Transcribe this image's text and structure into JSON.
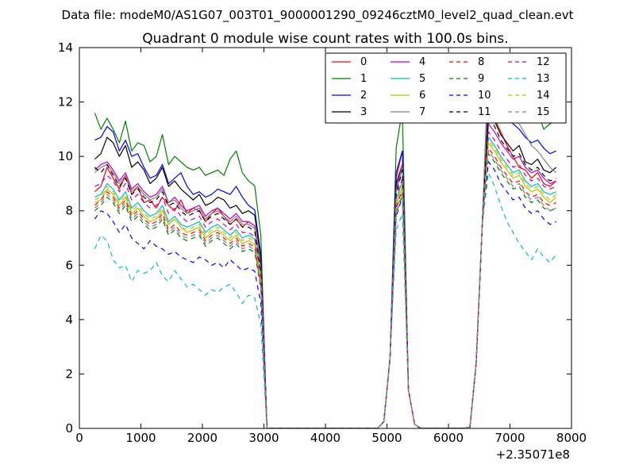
{
  "chart_data": {
    "type": "line",
    "suptitle": "Data file: modeM0/AS1G07_003T01_9000001290_09246cztM0_level2_quad_clean.evt",
    "title": "Quadrant 0 module wise count rates with 100.0s bins.",
    "xlabel": "",
    "ylabel": "",
    "x_offset_label": "+2.35071e8",
    "xlim": [
      0,
      8000
    ],
    "ylim": [
      0,
      14
    ],
    "xticks": [
      0,
      1000,
      2000,
      3000,
      4000,
      5000,
      6000,
      7000,
      8000
    ],
    "xtick_labels": [
      "0",
      "1000",
      "2000",
      "3000",
      "4000",
      "5000",
      "6000",
      "7000",
      "8000"
    ],
    "yticks": [
      0,
      2,
      4,
      6,
      8,
      10,
      12,
      14
    ],
    "ytick_labels": [
      "0",
      "2",
      "4",
      "6",
      "8",
      "10",
      "12",
      "14"
    ],
    "legend_position": "top-right",
    "legend_columns": 4,
    "x_segments": [
      [
        250,
        350,
        450,
        550,
        650,
        750,
        850,
        950,
        1050,
        1150,
        1250,
        1350,
        1450,
        1550,
        1650,
        1750,
        1850,
        1950,
        2050,
        2150,
        2250,
        2350,
        2450,
        2550,
        2650,
        2750,
        2850,
        2950,
        3050,
        3150,
        3250,
        3350,
        3450,
        3550,
        3650,
        3750,
        3850,
        3950,
        4050,
        4150,
        4250,
        4350,
        4450,
        4550,
        4650,
        4750,
        4850,
        4950,
        5050,
        5150,
        5250,
        5350,
        5450,
        5550,
        5650,
        5750,
        5850,
        5950,
        6050,
        6150,
        6250,
        6350,
        6450,
        6550,
        6650,
        6750,
        6850,
        6950,
        7050,
        7150,
        7250,
        7350,
        7450,
        7550,
        7650,
        7750
      ]
    ],
    "series": [
      {
        "name": "0",
        "color": "#ff0000",
        "dash": "solid",
        "profile": [
          8.7,
          8.9,
          9.6,
          9.2,
          8.8,
          9.3,
          8.6,
          8.9,
          8.3,
          8.4,
          8.1,
          8.5,
          8.2,
          8.0,
          8.4,
          7.9,
          8.1,
          8.0,
          7.6,
          7.9,
          8.1,
          7.8,
          7.5,
          7.7,
          7.4,
          7.6
        ],
        "peak1": [
          9.2,
          10.2
        ],
        "peak2": [
          11.7,
          11.4,
          10.9,
          10.4,
          10.0,
          9.6,
          9.5,
          9.2,
          9.4,
          9.0,
          8.9,
          9.1,
          8.8,
          8.9,
          8.7,
          8.6
        ]
      },
      {
        "name": "1",
        "color": "#008000",
        "dash": "solid",
        "profile": [
          11.6,
          11.0,
          11.4,
          11.0,
          10.5,
          11.3,
          10.2,
          10.5,
          10.4,
          9.8,
          10.0,
          10.8,
          9.7,
          10.0,
          9.8,
          9.6,
          9.5,
          9.6,
          9.3,
          9.4,
          9.5,
          9.3,
          9.9,
          10.2,
          9.4,
          9.1
        ],
        "peak1": [
          10.3,
          11.7
        ],
        "peak2": [
          13.4,
          12.9,
          12.3,
          12.1,
          11.7,
          11.8,
          11.5,
          11.3,
          11.6,
          11.0,
          11.2,
          11.3,
          11.0,
          11.1,
          10.6,
          9.2
        ]
      },
      {
        "name": "2",
        "color": "#0000ff",
        "dash": "solid",
        "profile": [
          10.6,
          10.7,
          11.1,
          10.9,
          10.2,
          10.6,
          10.0,
          10.1,
          9.6,
          9.2,
          9.3,
          9.7,
          9.0,
          9.2,
          9.4,
          8.9,
          8.6,
          8.7,
          8.5,
          8.6,
          8.8,
          8.7,
          8.6,
          8.9,
          8.5,
          8.2
        ],
        "peak1": [
          9.4,
          10.2
        ],
        "peak2": [
          12.5,
          12.2,
          11.8,
          11.5,
          11.2,
          11.0,
          10.7,
          10.5,
          10.6,
          10.3,
          10.1,
          10.2,
          9.8,
          9.9,
          9.5,
          8.0
        ]
      },
      {
        "name": "3",
        "color": "#000000",
        "dash": "solid",
        "profile": [
          9.9,
          10.1,
          10.7,
          10.5,
          10.0,
          10.4,
          9.6,
          9.8,
          9.5,
          9.0,
          9.2,
          9.6,
          8.9,
          9.1,
          8.8,
          8.6,
          8.4,
          8.6,
          8.2,
          8.3,
          8.5,
          8.4,
          8.1,
          8.2,
          7.9,
          8.0
        ],
        "peak1": [
          9.0,
          9.7
        ],
        "peak2": [
          11.9,
          11.3,
          10.8,
          10.5,
          10.2,
          10.4,
          9.8,
          9.7,
          9.9,
          9.5,
          9.4,
          9.6,
          9.3,
          9.0,
          9.2,
          8.6
        ]
      },
      {
        "name": "4",
        "color": "#bf00bf",
        "dash": "solid",
        "profile": [
          9.5,
          9.7,
          9.8,
          9.5,
          9.1,
          9.4,
          8.8,
          9.0,
          8.7,
          8.5,
          8.6,
          8.9,
          8.3,
          8.5,
          8.2,
          8.0,
          8.1,
          8.2,
          7.8,
          8.0,
          8.1,
          7.9,
          7.7,
          7.9,
          7.6,
          7.6
        ],
        "peak1": [
          8.8,
          9.7
        ],
        "peak2": [
          11.2,
          10.9,
          10.5,
          10.2,
          9.9,
          10.0,
          9.6,
          9.4,
          9.5,
          9.2,
          9.0,
          9.1,
          8.9,
          9.0,
          8.7,
          8.3
        ]
      },
      {
        "name": "5",
        "color": "#00bfbf",
        "dash": "solid",
        "profile": [
          8.5,
          8.6,
          9.0,
          8.8,
          8.4,
          8.7,
          8.1,
          8.3,
          8.0,
          7.8,
          7.9,
          8.2,
          7.6,
          7.8,
          7.5,
          7.4,
          7.5,
          7.6,
          7.2,
          7.4,
          7.5,
          7.3,
          7.1,
          7.3,
          7.0,
          7.1
        ],
        "peak1": [
          8.4,
          9.1
        ],
        "peak2": [
          10.7,
          10.4,
          10.0,
          9.7,
          9.4,
          9.5,
          9.1,
          8.9,
          9.0,
          8.7,
          8.6,
          8.7,
          8.4,
          8.5,
          8.2,
          7.8
        ]
      },
      {
        "name": "6",
        "color": "#bfbf00",
        "dash": "solid",
        "profile": [
          8.3,
          8.4,
          8.8,
          8.6,
          8.2,
          8.5,
          7.9,
          8.1,
          7.8,
          7.6,
          7.7,
          8.0,
          7.5,
          7.7,
          7.4,
          7.2,
          7.3,
          7.4,
          7.0,
          7.2,
          7.3,
          7.1,
          6.9,
          7.1,
          6.8,
          6.9
        ],
        "peak1": [
          8.2,
          8.9
        ],
        "peak2": [
          10.5,
          10.2,
          9.8,
          9.5,
          9.2,
          9.3,
          8.9,
          8.7,
          8.8,
          8.5,
          8.3,
          8.5,
          8.2,
          8.3,
          8.0,
          7.6
        ]
      },
      {
        "name": "7",
        "color": "#808080",
        "dash": "solid",
        "profile": [
          9.4,
          9.6,
          9.7,
          9.4,
          9.0,
          9.3,
          8.7,
          8.9,
          8.6,
          8.4,
          8.5,
          8.8,
          8.3,
          8.4,
          8.1,
          7.9,
          8.0,
          8.1,
          7.7,
          7.9,
          8.0,
          7.8,
          7.6,
          7.8,
          7.5,
          7.5
        ],
        "peak1": [
          8.7,
          9.6
        ],
        "peak2": [
          12.9,
          12.3,
          11.7,
          11.6,
          11.8,
          11.2,
          10.8,
          10.4,
          10.2,
          9.9,
          9.6,
          9.4,
          9.1,
          9.0,
          8.8,
          8.4
        ]
      },
      {
        "name": "8",
        "color": "#ff0000",
        "dash": "dashed",
        "profile": [
          8.2,
          8.4,
          8.7,
          8.5,
          8.1,
          8.4,
          7.8,
          8.0,
          7.7,
          7.5,
          7.6,
          7.9,
          7.3,
          7.5,
          7.2,
          7.1,
          7.2,
          7.3,
          6.9,
          7.1,
          7.2,
          7.0,
          6.8,
          7.0,
          6.7,
          6.8
        ],
        "peak1": [
          8.1,
          8.8
        ],
        "peak2": [
          10.3,
          10.0,
          9.6,
          9.3,
          9.0,
          9.1,
          8.7,
          8.5,
          8.6,
          8.3,
          8.2,
          8.3,
          8.0,
          8.1,
          7.8,
          7.4
        ]
      },
      {
        "name": "9",
        "color": "#008000",
        "dash": "dashed",
        "profile": [
          8.0,
          8.2,
          8.5,
          8.3,
          7.9,
          8.2,
          7.6,
          7.8,
          7.5,
          7.3,
          7.4,
          7.7,
          7.1,
          7.3,
          7.0,
          6.9,
          7.0,
          7.1,
          6.7,
          6.9,
          7.0,
          6.8,
          6.6,
          6.8,
          6.5,
          6.6
        ],
        "peak1": [
          7.9,
          8.6
        ],
        "peak2": [
          10.1,
          9.8,
          9.4,
          9.1,
          8.8,
          8.9,
          8.5,
          8.3,
          8.4,
          8.1,
          8.0,
          8.1,
          7.8,
          7.9,
          7.6,
          7.2
        ]
      },
      {
        "name": "10",
        "color": "#0000ff",
        "dash": "dashed",
        "profile": [
          7.7,
          8.0,
          7.9,
          7.6,
          7.2,
          7.5,
          7.0,
          6.8,
          6.6,
          6.9,
          6.7,
          6.6,
          6.4,
          6.5,
          6.3,
          6.2,
          6.1,
          6.3,
          6.2,
          6.0,
          6.1,
          5.9,
          6.2,
          6.0,
          5.8,
          5.9
        ],
        "peak1": [
          7.8,
          8.5
        ],
        "peak2": [
          9.8,
          9.5,
          9.0,
          8.7,
          8.4,
          8.5,
          8.1,
          7.9,
          8.0,
          7.7,
          7.5,
          7.6,
          7.3,
          7.4,
          7.0,
          5.3
        ]
      },
      {
        "name": "11",
        "color": "#000000",
        "dash": "dashed",
        "profile": [
          9.6,
          9.4,
          9.7,
          9.3,
          8.9,
          9.2,
          8.6,
          8.8,
          8.5,
          8.3,
          8.4,
          8.7,
          8.2,
          8.3,
          8.0,
          7.8,
          7.9,
          8.0,
          7.6,
          7.8,
          7.9,
          7.7,
          7.5,
          7.7,
          7.4,
          7.4
        ],
        "peak1": [
          8.6,
          9.5
        ],
        "peak2": [
          11.5,
          11.1,
          10.6,
          10.3,
          10.0,
          10.1,
          9.7,
          9.5,
          9.6,
          9.3,
          9.1,
          9.2,
          9.0,
          9.1,
          8.8,
          8.2
        ]
      },
      {
        "name": "12",
        "color": "#bf00bf",
        "dash": "dashed",
        "profile": [
          8.9,
          9.0,
          9.3,
          9.1,
          8.7,
          9.0,
          8.4,
          8.6,
          8.3,
          8.1,
          8.2,
          8.5,
          7.9,
          8.1,
          7.8,
          7.6,
          7.7,
          7.8,
          7.4,
          7.6,
          7.7,
          7.5,
          7.3,
          7.5,
          7.2,
          7.2
        ],
        "peak1": [
          8.5,
          9.2
        ],
        "peak2": [
          10.9,
          10.6,
          10.2,
          9.9,
          9.6,
          9.7,
          9.3,
          9.1,
          9.2,
          8.9,
          8.8,
          8.9,
          8.6,
          8.7,
          8.4,
          8.0
        ]
      },
      {
        "name": "13",
        "color": "#00bfbf",
        "dash": "dashed",
        "profile": [
          6.6,
          7.1,
          6.9,
          6.2,
          5.9,
          6.0,
          5.4,
          5.8,
          5.7,
          5.8,
          6.1,
          5.6,
          5.4,
          5.8,
          5.5,
          5.2,
          5.3,
          5.1,
          4.9,
          5.1,
          5.0,
          5.2,
          5.3,
          5.0,
          4.6,
          4.9
        ],
        "peak1": [
          7.3,
          7.9
        ],
        "peak2": [
          9.4,
          8.9,
          8.2,
          7.6,
          7.2,
          6.8,
          6.5,
          6.2,
          6.6,
          6.3,
          6.1,
          6.4,
          6.0,
          5.9,
          5.7,
          5.1
        ]
      },
      {
        "name": "14",
        "color": "#bfbf00",
        "dash": "dashed",
        "profile": [
          8.4,
          8.5,
          8.9,
          8.7,
          8.3,
          8.6,
          8.0,
          8.2,
          7.9,
          7.7,
          7.8,
          8.1,
          7.5,
          7.7,
          7.4,
          7.3,
          7.4,
          7.5,
          7.1,
          7.3,
          7.4,
          7.2,
          7.0,
          7.2,
          6.9,
          7.0
        ],
        "peak1": [
          8.3,
          9.0
        ],
        "peak2": [
          10.6,
          10.3,
          9.9,
          9.6,
          9.3,
          9.4,
          9.0,
          8.8,
          8.9,
          8.6,
          8.4,
          8.6,
          8.3,
          8.4,
          8.1,
          7.7
        ]
      },
      {
        "name": "15",
        "color": "#808080",
        "dash": "dashed",
        "profile": [
          8.1,
          8.3,
          8.6,
          8.4,
          8.0,
          8.3,
          7.7,
          7.9,
          7.6,
          7.4,
          7.5,
          7.8,
          7.2,
          7.4,
          7.1,
          7.0,
          7.1,
          7.2,
          6.8,
          7.0,
          7.1,
          6.9,
          6.7,
          6.9,
          6.6,
          6.7
        ],
        "peak1": [
          8.0,
          8.7
        ],
        "peak2": [
          10.2,
          9.9,
          9.5,
          9.2,
          8.9,
          9.0,
          8.6,
          8.4,
          8.5,
          8.2,
          8.0,
          8.1,
          7.9,
          8.0,
          7.7,
          7.3
        ]
      }
    ]
  }
}
